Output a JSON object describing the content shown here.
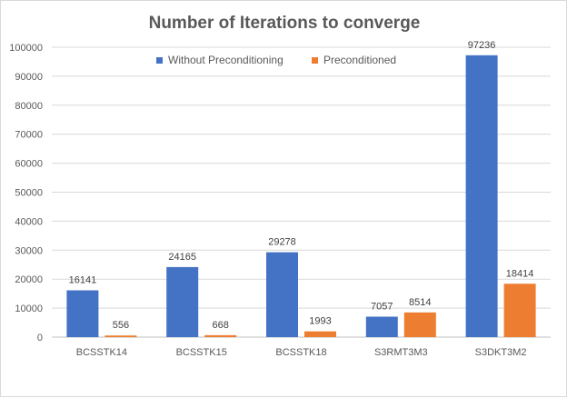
{
  "chart_data": {
    "type": "bar",
    "title": "Number of Iterations to converge",
    "categories": [
      "BCSSTK14",
      "BCSSTK15",
      "BCSSTK18",
      "S3RMT3M3",
      "S3DKT3M2"
    ],
    "series": [
      {
        "name": "Without Preconditioning",
        "values": [
          16141,
          24165,
          29278,
          7057,
          97236
        ],
        "color": "#4472c4"
      },
      {
        "name": "Preconditioned",
        "values": [
          556,
          668,
          1993,
          8514,
          18414
        ],
        "color": "#ed7d31"
      }
    ],
    "ylim": [
      0,
      100000
    ],
    "yticks": [
      "0",
      "10000",
      "20000",
      "30000",
      "40000",
      "50000",
      "60000",
      "70000",
      "80000",
      "90000",
      "100000"
    ],
    "grid": true,
    "legend_position": "top"
  }
}
